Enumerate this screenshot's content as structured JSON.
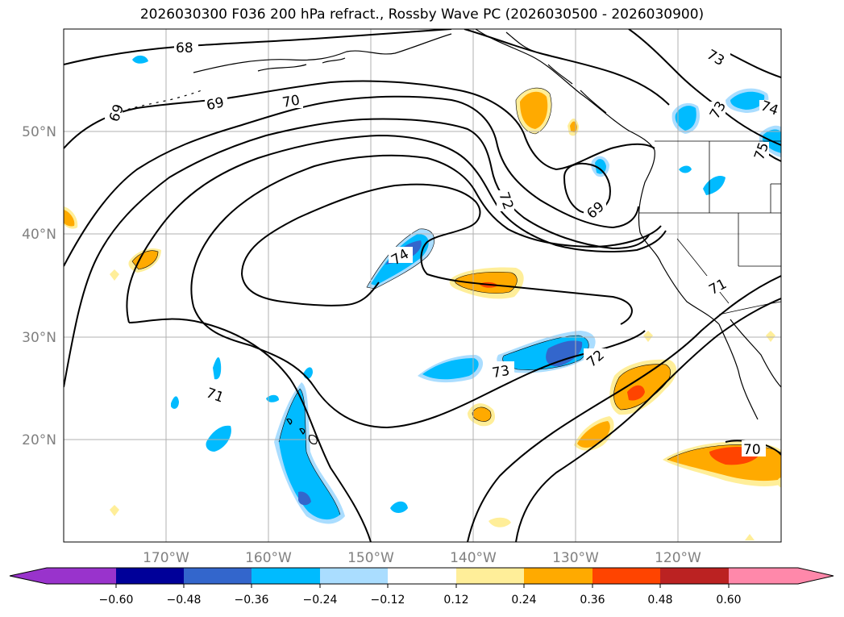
{
  "title": "2026030300 F036 200 hPa refract., Rossby Wave PC (2026030500 - 2026030900)",
  "lon_labels": [
    "170°W",
    "160°W",
    "150°W",
    "140°W",
    "130°W",
    "120°W"
  ],
  "lat_labels": [
    "50°N",
    "40°N",
    "30°N",
    "20°N"
  ],
  "contour_labels": {
    "c68": "68",
    "c69a": "69",
    "c69b": "69",
    "c69c": "69",
    "c70a": "70",
    "c70b": "70",
    "c71a": "71",
    "c71b": "71",
    "c72a": "72",
    "c72b": "72",
    "c73a": "73",
    "c73b": "73",
    "c73c": "73",
    "c74a": "74",
    "c74b": "74",
    "c75": "75"
  },
  "colorbar": {
    "ticks": [
      "−0.60",
      "−0.48",
      "−0.36",
      "−0.24",
      "−0.12",
      "0.12",
      "0.24",
      "0.36",
      "0.48",
      "0.60"
    ],
    "colors": [
      "#9933cc",
      "#000099",
      "#3366cc",
      "#00bbff",
      "#aaddff",
      "#ffffff",
      "#ffee99",
      "#ffaa00",
      "#ff4400",
      "#bb2222",
      "#ff88aa"
    ]
  },
  "shading_colors": {
    "neg1": "#aaddff",
    "neg2": "#00bbff",
    "neg3": "#3366cc",
    "pos1": "#ffee99",
    "pos2": "#ffaa00",
    "pos3": "#ff4400"
  }
}
